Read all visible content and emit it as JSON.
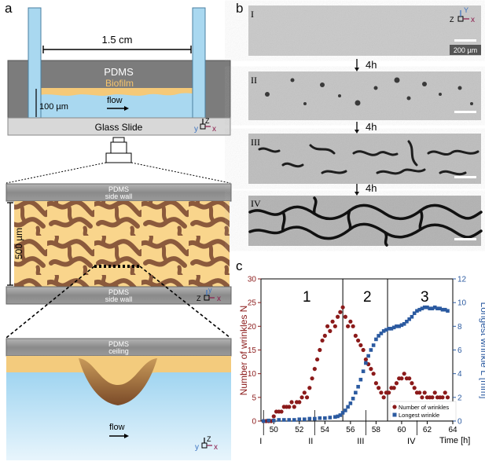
{
  "panel_a": {
    "label": "a",
    "width_label": "1.5 cm",
    "pdms_label": "PDMS",
    "biofilm_label": "Biofilm",
    "height_label": "100 µm",
    "flow_label": "flow",
    "glass_label": "Glass Slide",
    "axes": {
      "z": "Z",
      "y": "y",
      "x": "x"
    },
    "side_wall_top": [
      "PDMS",
      "side wall"
    ],
    "side_wall_bottom": [
      "PDMS",
      "side wall"
    ],
    "scale_label": "500 µm",
    "ceiling_label": [
      "PDMS",
      "ceiling"
    ],
    "flow_label_bottom": "flow"
  },
  "panel_b": {
    "label": "b",
    "frames": [
      "I",
      "II",
      "III",
      "IV"
    ],
    "interval_label": "4h",
    "scale_label": "200 µm",
    "axes": {
      "z": "Z",
      "y": "Y",
      "x": "x"
    }
  },
  "panel_c": {
    "label": "c",
    "phase_labels": [
      "1",
      "2",
      "3"
    ],
    "frame_markers": [
      "I",
      "II",
      "III",
      "IV"
    ]
  },
  "colors": {
    "pdms": "#8a8a8a",
    "biofilm": "#f8d58a",
    "wrinkle": "#8b5a3c",
    "water": "#a9d8f0",
    "wrinkle_series": "#8b1a1a",
    "length_series": "#2b5aa0"
  },
  "chart_data": {
    "type": "scatter",
    "xlabel": "Time [h]",
    "ylabel_left": "Number of wrinkles N",
    "ylabel_right": "Longest wrinkle L [mm]",
    "xlim": [
      49,
      64
    ],
    "ylim_left": [
      0,
      30
    ],
    "ylim_right": [
      0,
      12
    ],
    "xticks": [
      50,
      52,
      54,
      56,
      58,
      60,
      62,
      64
    ],
    "yticks_left": [
      0,
      5,
      10,
      15,
      20,
      25,
      30
    ],
    "yticks_right": [
      0,
      2,
      4,
      6,
      8,
      10,
      12
    ],
    "phase_boundaries": [
      55.4,
      58.9
    ],
    "frame_times": [
      49.2,
      53.2,
      57.2,
      61.2
    ],
    "legend": "bottom-right",
    "series": [
      {
        "name": "Number of wrinkles",
        "axis": "left",
        "color": "#8b1a1a",
        "x": [
          49.2,
          49.4,
          49.6,
          49.8,
          50.0,
          50.2,
          50.4,
          50.6,
          50.8,
          51.0,
          51.2,
          51.4,
          51.6,
          51.8,
          52.0,
          52.2,
          52.4,
          52.6,
          52.8,
          53.0,
          53.2,
          53.4,
          53.6,
          53.8,
          54.0,
          54.2,
          54.4,
          54.6,
          54.8,
          55.0,
          55.2,
          55.4,
          55.6,
          55.8,
          56.0,
          56.2,
          56.4,
          56.6,
          56.8,
          57.0,
          57.2,
          57.4,
          57.6,
          57.8,
          58.0,
          58.2,
          58.4,
          58.6,
          58.8,
          59.0,
          59.2,
          59.4,
          59.6,
          59.8,
          60.0,
          60.2,
          60.4,
          60.6,
          60.8,
          61.0,
          61.2,
          61.4,
          61.6,
          61.8,
          62.0,
          62.2,
          62.4,
          62.6,
          62.8,
          63.0,
          63.2,
          63.4,
          63.6
        ],
        "y": [
          0,
          0,
          0,
          0,
          1,
          2,
          2,
          2,
          3,
          3,
          3,
          4,
          3,
          4,
          4,
          5,
          6,
          5,
          7,
          9,
          11,
          13,
          15,
          17,
          18,
          20,
          19,
          21,
          20,
          22,
          23,
          24,
          22,
          20,
          21,
          20,
          18,
          17,
          16,
          15,
          13,
          12,
          11,
          10,
          8,
          7,
          6,
          5,
          6,
          6,
          7,
          7,
          8,
          9,
          9,
          10,
          9,
          9,
          8,
          7,
          6,
          6,
          5,
          6,
          5,
          5,
          5,
          6,
          5,
          5,
          5,
          6,
          5
        ]
      },
      {
        "name": "Longest wrinkle",
        "axis": "right",
        "color": "#2b5aa0",
        "x": [
          49.2,
          49.6,
          50.0,
          50.4,
          50.8,
          51.2,
          51.6,
          52.0,
          52.4,
          52.8,
          53.2,
          53.6,
          54.0,
          54.4,
          54.8,
          55.0,
          55.2,
          55.4,
          55.6,
          55.8,
          56.0,
          56.2,
          56.4,
          56.6,
          56.8,
          57.0,
          57.2,
          57.4,
          57.6,
          57.8,
          58.0,
          58.2,
          58.4,
          58.6,
          58.8,
          59.0,
          59.2,
          59.4,
          59.6,
          59.8,
          60.0,
          60.2,
          60.4,
          60.6,
          60.8,
          61.0,
          61.2,
          61.4,
          61.6,
          61.8,
          62.0,
          62.2,
          62.4,
          62.6,
          62.8,
          63.0,
          63.2,
          63.4,
          63.6
        ],
        "y": [
          0.0,
          0.05,
          0.05,
          0.1,
          0.1,
          0.1,
          0.1,
          0.15,
          0.15,
          0.2,
          0.2,
          0.25,
          0.25,
          0.3,
          0.35,
          0.4,
          0.5,
          0.7,
          0.9,
          1.2,
          1.5,
          1.9,
          2.4,
          2.9,
          3.5,
          4.2,
          4.9,
          5.5,
          6.0,
          6.4,
          6.9,
          7.2,
          7.4,
          7.6,
          7.7,
          7.8,
          7.8,
          7.9,
          8.0,
          8.0,
          8.1,
          8.2,
          8.4,
          8.6,
          8.8,
          9.1,
          9.3,
          9.4,
          9.5,
          9.6,
          9.6,
          9.5,
          9.5,
          9.6,
          9.5,
          9.5,
          9.4,
          9.4,
          9.3
        ]
      }
    ]
  }
}
